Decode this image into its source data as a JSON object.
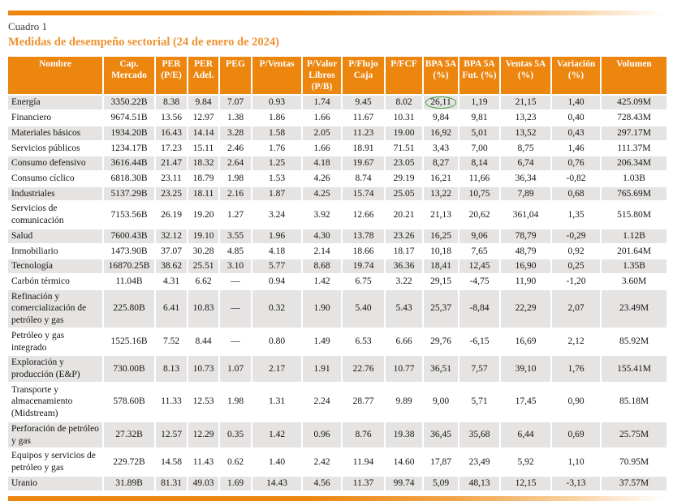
{
  "header": {
    "label": "Cuadro 1",
    "title": "Medidas de desempeño sectorial (24 de enero de 2024)"
  },
  "colors": {
    "accent_orange": "#EC860F",
    "title_orange": "#EF9233",
    "stripe_gray": "#E6E4E2",
    "header_text": "#FFFFFF",
    "circle_green": "#3F9C3F"
  },
  "table": {
    "columns": [
      "Nombre",
      "Cap. Mercado",
      "PER (P/E)",
      "PER Adel.",
      "PEG",
      "P/Ventas",
      "P/Valor Libros (P/B)",
      "P/Flujo Caja",
      "P/FCF",
      "BPA 5A (%)",
      "BPA 5A Fut. (%)",
      "Ventas 5A (%)",
      "Variación (%)",
      "Volumen"
    ],
    "rows": [
      {
        "cells": [
          "Energía",
          "3350.22B",
          "8.38",
          "9.84",
          "7.07",
          "0.93",
          "1.74",
          "9.45",
          "8.02",
          "26,11",
          "1,19",
          "21,15",
          "1,40",
          "425.09M"
        ],
        "circled_index": 9
      },
      {
        "cells": [
          "Financiero",
          "9674.51B",
          "13.56",
          "12.97",
          "1.38",
          "1.86",
          "1.66",
          "11.67",
          "10.31",
          "9,84",
          "9,81",
          "13,23",
          "0,40",
          "728.43M"
        ]
      },
      {
        "cells": [
          "Materiales básicos",
          "1934.20B",
          "16.43",
          "14.14",
          "3.28",
          "1.58",
          "2.05",
          "11.23",
          "19.00",
          "16,92",
          "5,01",
          "13,52",
          "0,43",
          "297.17M"
        ]
      },
      {
        "cells": [
          "Servicios públicos",
          "1234.17B",
          "17.23",
          "15.11",
          "2.46",
          "1.76",
          "1.66",
          "18.91",
          "71.51",
          "3,43",
          "7,00",
          "8,75",
          "1,46",
          "111.37M"
        ]
      },
      {
        "cells": [
          "Consumo defensivo",
          "3616.44B",
          "21.47",
          "18.32",
          "2.64",
          "1.25",
          "4.18",
          "19.67",
          "23.05",
          "8,27",
          "8,14",
          "6,74",
          "0,76",
          "206.34M"
        ]
      },
      {
        "cells": [
          "Consumo cíclico",
          "6818.30B",
          "23.11",
          "18.79",
          "1.98",
          "1.53",
          "4.26",
          "8.74",
          "29.19",
          "16,21",
          "11,66",
          "36,34",
          "-0,82",
          "1.03B"
        ]
      },
      {
        "cells": [
          "Industriales",
          "5137.29B",
          "23.25",
          "18.11",
          "2.16",
          "1.87",
          "4.25",
          "15.74",
          "25.05",
          "13,22",
          "10,75",
          "7,89",
          "0,68",
          "765.69M"
        ]
      },
      {
        "cells": [
          "Servicios de comunicación",
          "7153.56B",
          "26.19",
          "19.20",
          "1.27",
          "3.24",
          "3.92",
          "12.66",
          "20.21",
          "21,13",
          "20,62",
          "361,04",
          "1,35",
          "515.80M"
        ]
      },
      {
        "cells": [
          "Salud",
          "7600.43B",
          "32.12",
          "19.10",
          "3.55",
          "1.96",
          "4.30",
          "13.78",
          "23.26",
          "16,25",
          "9,06",
          "78,79",
          "-0,29",
          "1.12B"
        ]
      },
      {
        "cells": [
          "Inmobiliario",
          "1473.90B",
          "37.07",
          "30.28",
          "4.85",
          "4.18",
          "2.14",
          "18.66",
          "18.17",
          "10,18",
          "7,65",
          "48,79",
          "0,92",
          "201.64M"
        ]
      },
      {
        "cells": [
          "Tecnología",
          "16870.25B",
          "38.62",
          "25.51",
          "3.10",
          "5.77",
          "8.68",
          "19.74",
          "36.36",
          "18,41",
          "12,45",
          "16,90",
          "0,25",
          "1.35B"
        ]
      },
      {
        "cells": [
          "Carbón térmico",
          "11.04B",
          "4.31",
          "6.62",
          "—",
          "0.94",
          "1.42",
          "6.75",
          "3.22",
          "29,15",
          "-4,75",
          "11,90",
          "-1,20",
          "3.60M"
        ]
      },
      {
        "cells": [
          "Refinación y comercialización de petróleo y gas",
          "225.80B",
          "6.41",
          "10.83",
          "—",
          "0.32",
          "1.90",
          "5.40",
          "5.43",
          "25,37",
          "-8,84",
          "22,29",
          "2,07",
          "23.49M"
        ]
      },
      {
        "cells": [
          "Petróleo y gas integrado",
          "1525.16B",
          "7.52",
          "8.44",
          "—",
          "0.80",
          "1.49",
          "6.53",
          "6.66",
          "29,76",
          "-6,15",
          "16,69",
          "2,12",
          "85.92M"
        ]
      },
      {
        "cells": [
          "Exploración y producción (E&P)",
          "730.00B",
          "8.13",
          "10.73",
          "1.07",
          "2.17",
          "1.91",
          "22.76",
          "10.77",
          "36,51",
          "7,57",
          "39,10",
          "1,76",
          "155.41M"
        ]
      },
      {
        "cells": [
          "Transporte y almacenamiento (Midstream)",
          "578.60B",
          "11.33",
          "12.53",
          "1.98",
          "1.31",
          "2.24",
          "28.77",
          "9.89",
          "9,00",
          "5,71",
          "17,45",
          "0,90",
          "85.18M"
        ]
      },
      {
        "cells": [
          "Perforación de petróleo y gas",
          "27.32B",
          "12.57",
          "12.29",
          "0.35",
          "1.42",
          "0.96",
          "8.76",
          "19.38",
          "36,45",
          "35,68",
          "6,44",
          "0,69",
          "25.75M"
        ]
      },
      {
        "cells": [
          "Equipos y servicios de petróleo y gas",
          "229.72B",
          "14.58",
          "11.43",
          "0.62",
          "1.40",
          "2.42",
          "11.94",
          "14.60",
          "17,87",
          "23,49",
          "5,92",
          "1,10",
          "70.95M"
        ]
      },
      {
        "cells": [
          "Uranio",
          "31.89B",
          "81.31",
          "49.03",
          "1.69",
          "14.43",
          "4.56",
          "11.37",
          "99.74",
          "5,09",
          "48,13",
          "12,15",
          "-3,13",
          "37.57M"
        ]
      }
    ]
  }
}
